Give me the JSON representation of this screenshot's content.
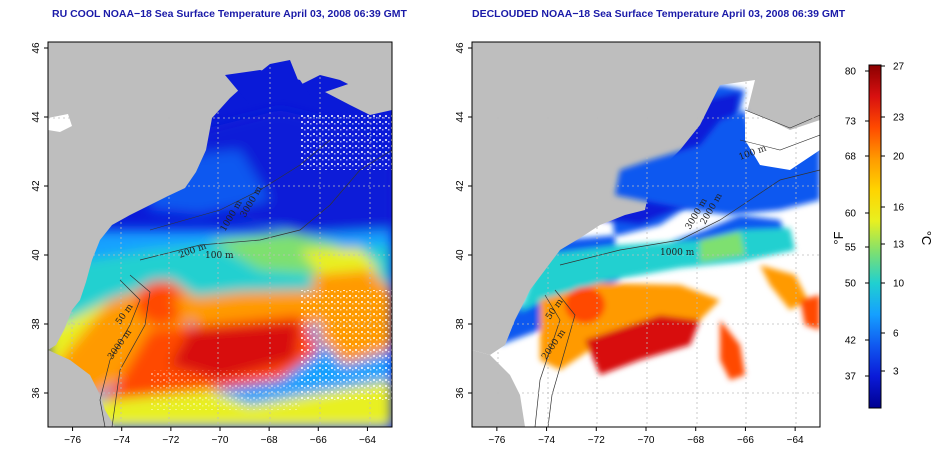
{
  "panels": [
    {
      "title": "RU COOL NOAA−18 Sea Surface Temperature April 03, 2008 06:39 GMT",
      "contour_labels": [
        "50 m",
        "3000 m",
        "100 m",
        "200 m",
        "3000 m",
        "1000 m"
      ]
    },
    {
      "title": "DECLOUDED NOAA−18 Sea Surface Temperature April 03, 2008 06:39 GMT",
      "contour_labels": [
        "100 m",
        "50 m",
        "2000 m",
        "1000 m",
        "3000 m",
        "2000 m"
      ]
    }
  ],
  "axes": {
    "x_ticks": [
      "−76",
      "−74",
      "−72",
      "−70",
      "−68",
      "−66",
      "−64"
    ],
    "y_ticks": [
      "36",
      "38",
      "40",
      "42",
      "44",
      "46"
    ]
  },
  "colorbar": {
    "fahrenheit_ticks": [
      "80",
      "73",
      "68",
      "60",
      "55",
      "50",
      "42",
      "37"
    ],
    "celsius_ticks": [
      "27",
      "23",
      "20",
      "16",
      "13",
      "10",
      "6",
      "3"
    ],
    "fahrenheit_unit": "°F",
    "celsius_unit": "°C",
    "colors": [
      "#8b0000",
      "#d81010",
      "#ff4a00",
      "#ff9a00",
      "#ffd400",
      "#e8f020",
      "#7ee070",
      "#20d0d0",
      "#15a0ff",
      "#1058f0",
      "#0a1ad8",
      "#000090"
    ]
  },
  "colors": {
    "land": "#bebebe",
    "cloud": "#ffffff",
    "title": "#1a1aa8",
    "grid": "#bdbdbd"
  }
}
